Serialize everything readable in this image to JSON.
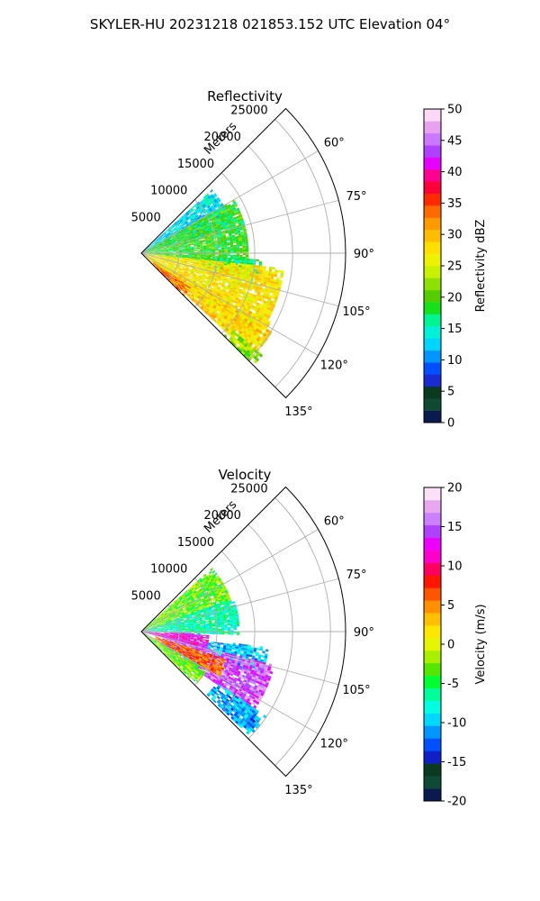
{
  "figure_title": "SKYLER-HU  20231218  021853.152 UTC Elevation 04°",
  "colors": {
    "refl_cmap": [
      "#0a1a4e",
      "#114a33",
      "#0a3a20",
      "#1a2bd0",
      "#0050ff",
      "#0095ff",
      "#00d5ff",
      "#00f0d8",
      "#00f592",
      "#14e01c",
      "#55cc00",
      "#8ee000",
      "#c8f000",
      "#eef100",
      "#ffdf00",
      "#ffbd00",
      "#ff9a00",
      "#ff6a00",
      "#ff2a00",
      "#ff0038",
      "#ff0090",
      "#e600ff",
      "#b040ff",
      "#cc77ff",
      "#e8a0f0",
      "#fbd8f6"
    ],
    "vel_cmap": [
      "#0a1a4e",
      "#0f4a38",
      "#0a3a20",
      "#1020c8",
      "#0050ff",
      "#0095ff",
      "#00d8ff",
      "#00ffe0",
      "#00ff9a",
      "#00ff30",
      "#55e600",
      "#a8f000",
      "#e6f500",
      "#ffe600",
      "#ffc000",
      "#ff9000",
      "#ff5500",
      "#ff1500",
      "#ff0060",
      "#ff00cc",
      "#ee00ff",
      "#b040ff",
      "#cc80ff",
      "#e8a8f0",
      "#fbe0f8"
    ]
  },
  "chart_data": [
    {
      "type": "heatmap",
      "title": "Reflectivity",
      "projection": "polar",
      "radial_label": "Meters",
      "radial_ticks": [
        "5000",
        "10000",
        "15000",
        "20000",
        "25000"
      ],
      "rmax": 27000,
      "theta_range_deg": [
        45,
        135
      ],
      "theta_ticks": [
        "60°",
        "75°",
        "90°",
        "105°",
        "120°",
        "135°"
      ],
      "colorbar": {
        "label": "Reflectivity dBZ",
        "range": [
          0,
          50
        ],
        "ticks": [
          "0",
          "5",
          "10",
          "15",
          "20",
          "25",
          "30",
          "35",
          "40",
          "45",
          "50"
        ]
      },
      "echoes": [
        {
          "az_from": 48,
          "az_to": 76,
          "r_from": 200,
          "r_to": 12500,
          "value": 13
        },
        {
          "az_from": 60,
          "az_to": 98,
          "r_from": 200,
          "r_to": 14000,
          "value": 19
        },
        {
          "az_from": 93,
          "az_to": 104,
          "r_from": 8000,
          "r_to": 16000,
          "value": 17
        },
        {
          "az_from": 96,
          "az_to": 128,
          "r_from": 200,
          "r_to": 19000,
          "value": 27
        },
        {
          "az_from": 118,
          "az_to": 133,
          "r_from": 1000,
          "r_to": 20000,
          "value": 28
        },
        {
          "az_from": 125,
          "az_to": 135,
          "r_from": 2000,
          "r_to": 8000,
          "value": 34
        },
        {
          "az_from": 130,
          "az_to": 135,
          "r_from": 15000,
          "r_to": 21000,
          "value": 22
        }
      ]
    },
    {
      "type": "heatmap",
      "title": "Velocity",
      "projection": "polar",
      "radial_label": "Meters",
      "radial_ticks": [
        "5000",
        "10000",
        "15000",
        "20000",
        "25000"
      ],
      "rmax": 27000,
      "theta_range_deg": [
        45,
        135
      ],
      "theta_ticks": [
        "60°",
        "75°",
        "90°",
        "105°",
        "120°",
        "135°"
      ],
      "colorbar": {
        "label": "Velocity (m/s)",
        "range": [
          -20,
          20
        ],
        "ticks": [
          "-20",
          "-15",
          "-10",
          "-5",
          "0",
          "5",
          "10",
          "15",
          "20"
        ]
      },
      "echoes": [
        {
          "az_from": 48,
          "az_to": 72,
          "r_from": 200,
          "r_to": 12500,
          "value": -3
        },
        {
          "az_from": 70,
          "az_to": 92,
          "r_from": 200,
          "r_to": 13000,
          "value": -7
        },
        {
          "az_from": 92,
          "az_to": 106,
          "r_from": 200,
          "r_to": 9000,
          "value": 12
        },
        {
          "az_from": 97,
          "az_to": 110,
          "r_from": 9000,
          "r_to": 17000,
          "value": -10
        },
        {
          "az_from": 104,
          "az_to": 125,
          "r_from": 3000,
          "r_to": 18000,
          "value": 15
        },
        {
          "az_from": 108,
          "az_to": 120,
          "r_from": 2000,
          "r_to": 12000,
          "value": 6
        },
        {
          "az_from": 120,
          "az_to": 134,
          "r_from": 500,
          "r_to": 10000,
          "value": -3
        },
        {
          "az_from": 124,
          "az_to": 134,
          "r_from": 12000,
          "r_to": 20000,
          "value": -11
        }
      ]
    }
  ]
}
